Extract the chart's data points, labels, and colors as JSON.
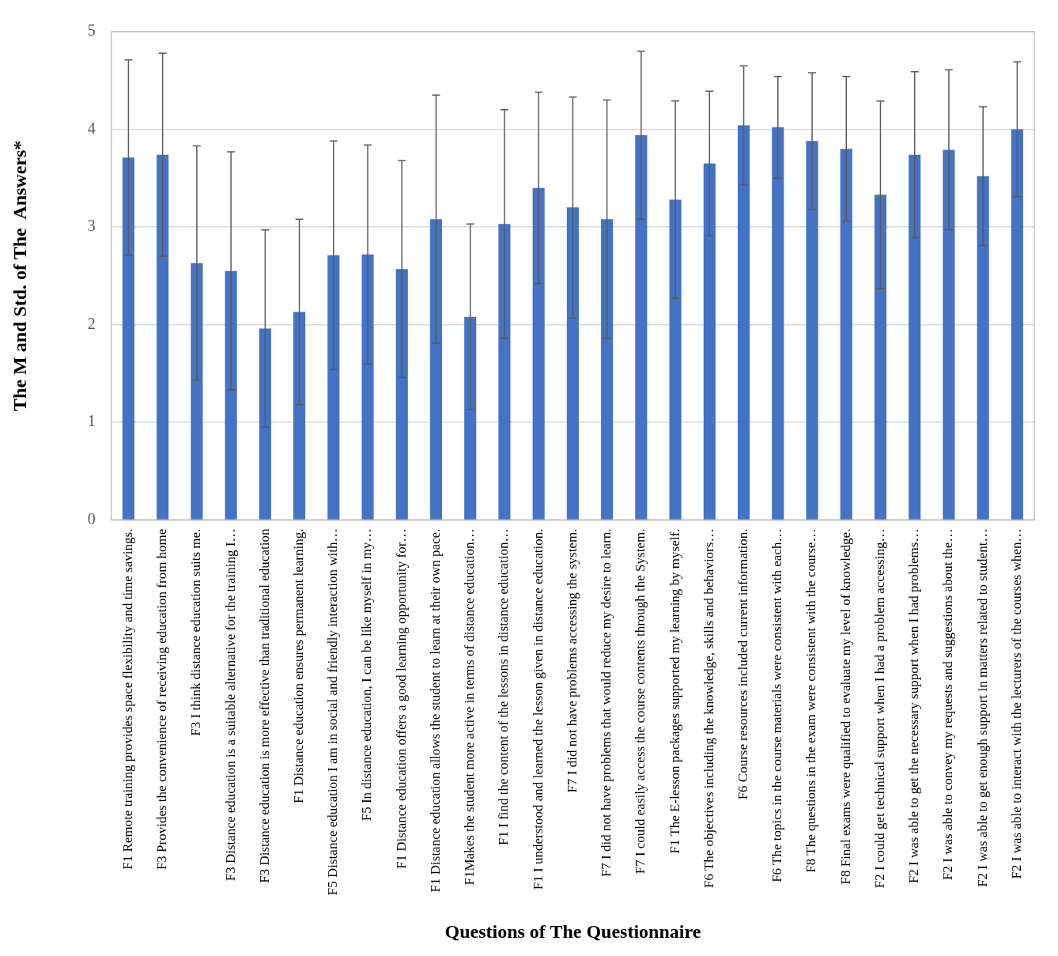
{
  "chart_data": {
    "type": "bar",
    "xlabel": "Questions of The Questionnaire",
    "ylabel": "The M and Std. of The  Answers*",
    "categories": [
      "F1 Remote training provides space flexibility and time savings.",
      "F3 Provides the convenience of receiving education from home",
      "F3 I think distance education suits me.",
      "F3 Distance education is a suitable alternative for the training I…",
      "F3 Distance education is more effective than traditional education",
      "F1 Distance education ensures permanent learning.",
      "F5 Distance education I am in social and friendly interaction with…",
      "F5 In distance education, I can be like myself in my…",
      "F1 Distance education offers a good learning opportunity for…",
      "F1 Distance education allows the student to learn at their own pace.",
      "F1Makes the student more active in terms of distance education…",
      "F1 I find the content of the lessons in distance education…",
      "F1 I understood and learned the lesson given in distance education.",
      "F7 I did not have problems accessing the system.",
      "F7 I did not have problems that would reduce my desire to learn.",
      "F7 I could easily access the course contents through the System.",
      "F1 The E-lesson packages supported my learning by myself.",
      "F6 The objectives including the knowledge, skills and behaviors…",
      "F6 Course resources included current information.",
      "F6 The topics in the course materials were consistent with each…",
      "F8 The questions in the exam were consistent with the course…",
      "F8 Final exams were qualified to evaluate my level of knowledge.",
      "F2 I could get technical support when I had a problem accessing…",
      "F2 I was able to get the necessary support when I had problems…",
      "F2 I was able to convey my requests and suggestions about the…",
      "F2 I was able to get enough support in matters related to student…",
      "F2 I was able to interact with the lecturers of the courses when…"
    ],
    "values": [
      3.71,
      3.74,
      2.63,
      2.55,
      1.96,
      2.13,
      2.71,
      2.72,
      2.57,
      3.08,
      2.08,
      3.03,
      3.4,
      3.2,
      3.08,
      3.94,
      3.28,
      3.65,
      4.04,
      4.02,
      3.88,
      3.8,
      3.33,
      3.74,
      3.79,
      3.52,
      4.0
    ],
    "errors": [
      1.0,
      1.04,
      1.2,
      1.22,
      1.01,
      0.95,
      1.17,
      1.12,
      1.11,
      1.27,
      0.95,
      1.17,
      0.98,
      1.13,
      1.22,
      0.86,
      1.01,
      0.74,
      0.61,
      0.52,
      0.7,
      0.74,
      0.96,
      0.85,
      0.82,
      0.71,
      0.69
    ],
    "color": "#4472c4",
    "ylim": [
      0,
      5
    ],
    "yticks": [
      0,
      1,
      2,
      3,
      4,
      5
    ],
    "grid": "y",
    "legend": false
  }
}
